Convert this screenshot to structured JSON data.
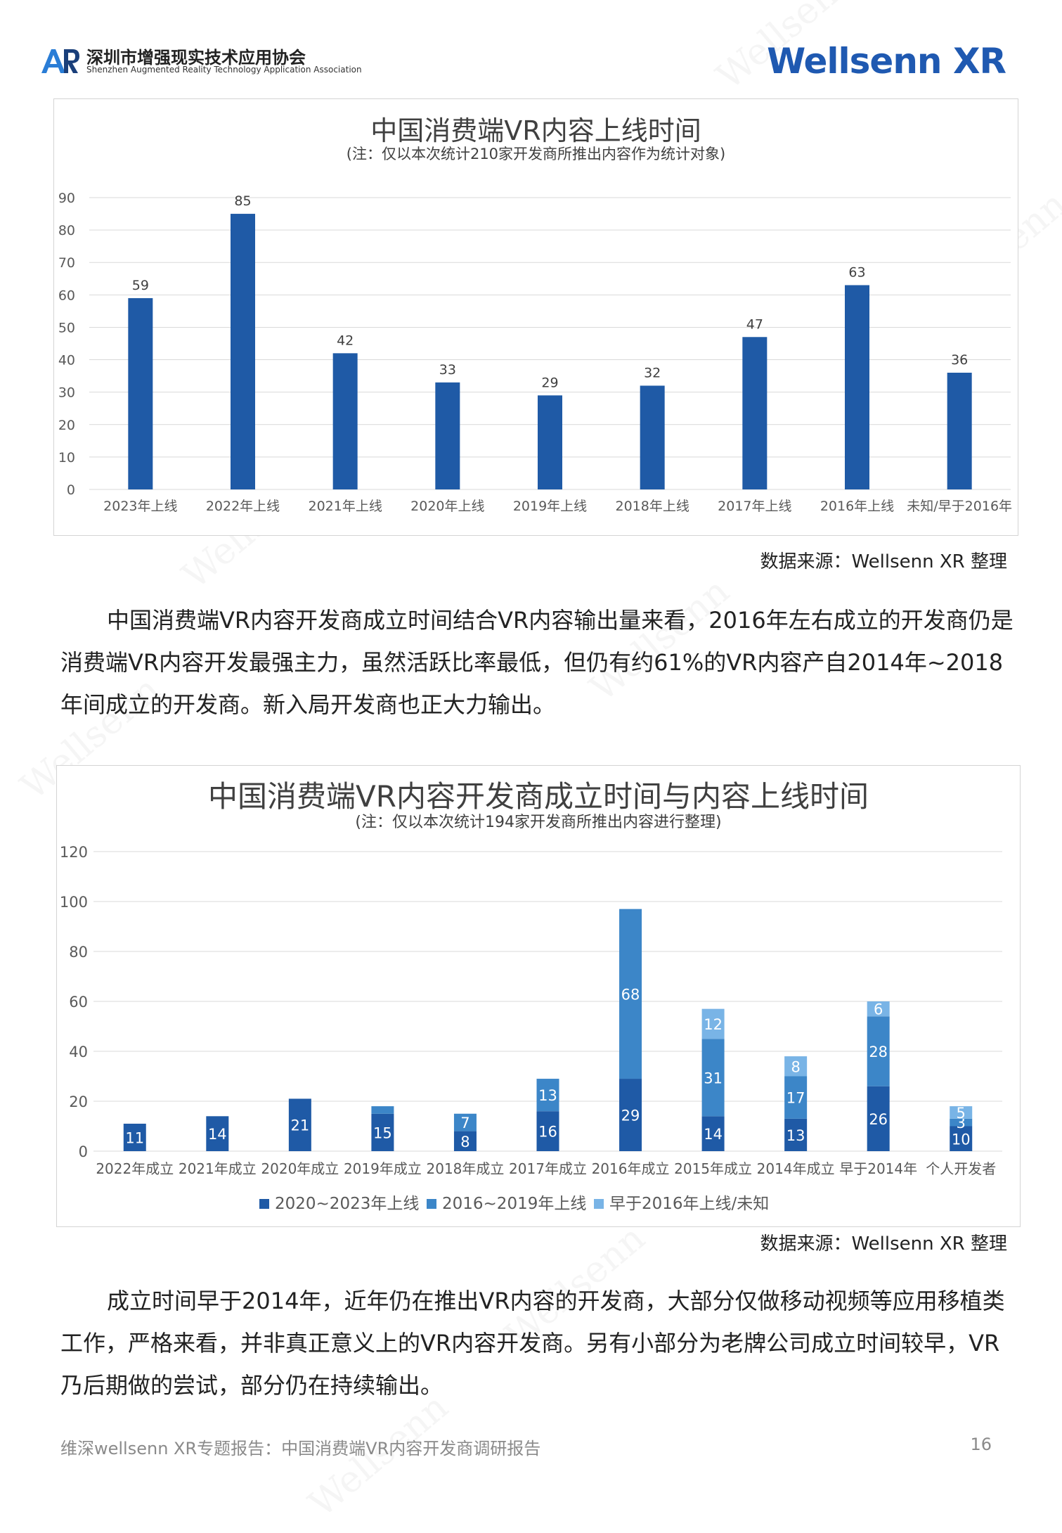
{
  "header": {
    "badge": "AR",
    "assoc_cn": "深圳市增强现实技术应用协会",
    "assoc_en": "Shenzhen Augmented Reality Technology Application Association",
    "brand": "Wellsenn XR"
  },
  "watermark_text": "Wellsenn",
  "charts": {
    "chart1": {
      "title": "中国消费端VR内容上线时间",
      "subtitle": "(注：仅以本次统计210家开发商所推出内容作为统计对象)",
      "source": "数据来源：Wellsenn XR 整理"
    },
    "chart2": {
      "title": "中国消费端VR内容开发商成立时间与内容上线时间",
      "subtitle": "(注：仅以本次统计194家开发商所推出内容进行整理)",
      "source": "数据来源：Wellsenn XR 整理"
    }
  },
  "chart_data": [
    {
      "type": "bar",
      "title": "中国消费端VR内容上线时间",
      "subtitle": "(注：仅以本次统计210家开发商所推出内容作为统计对象)",
      "categories": [
        "2023年上线",
        "2022年上线",
        "2021年上线",
        "2020年上线",
        "2019年上线",
        "2018年上线",
        "2017年上线",
        "2016年上线",
        "未知/早于2016年"
      ],
      "values": [
        59,
        85,
        42,
        33,
        29,
        32,
        47,
        63,
        36
      ],
      "ylim": [
        0,
        90
      ],
      "yticks": [
        0,
        10,
        20,
        30,
        40,
        50,
        60,
        70,
        80,
        90
      ],
      "grid": true,
      "color": "#1f5aa6"
    },
    {
      "type": "bar",
      "stacked": true,
      "title": "中国消费端VR内容开发商成立时间与内容上线时间",
      "subtitle": "(注：仅以本次统计194家开发商所推出内容进行整理)",
      "categories": [
        "2022年成立",
        "2021年成立",
        "2020年成立",
        "2019年成立",
        "2018年成立",
        "2017年成立",
        "2016年成立",
        "2015年成立",
        "2014年成立",
        "早于2014年",
        "个人开发者"
      ],
      "series": [
        {
          "name": "2020~2023年上线",
          "color": "#1f5aa6",
          "values": [
            11,
            14,
            21,
            15,
            8,
            16,
            29,
            14,
            13,
            26,
            10
          ]
        },
        {
          "name": "2016~2019年上线",
          "color": "#3c86c8",
          "values": [
            0,
            0,
            0,
            3,
            7,
            13,
            68,
            31,
            17,
            28,
            3
          ]
        },
        {
          "name": "早于2016年上线/未知",
          "color": "#79b4e6",
          "values": [
            0,
            0,
            0,
            0,
            0,
            0,
            0,
            12,
            8,
            6,
            5
          ]
        }
      ],
      "labels": [
        [
          "11",
          "",
          ""
        ],
        [
          "14",
          "",
          ""
        ],
        [
          "21",
          "",
          ""
        ],
        [
          "15",
          "",
          ""
        ],
        [
          "8",
          "7",
          ""
        ],
        [
          "16",
          "13",
          ""
        ],
        [
          "29",
          "68",
          ""
        ],
        [
          "14",
          "31",
          "12"
        ],
        [
          "13",
          "17",
          "8"
        ],
        [
          "26",
          "28",
          "6"
        ],
        [
          "10",
          "3",
          "5"
        ]
      ],
      "ylim": [
        0,
        120
      ],
      "yticks": [
        0,
        20,
        40,
        60,
        80,
        100,
        120
      ],
      "grid": true,
      "legend": "bottom"
    }
  ],
  "paragraphs": {
    "p1": "中国消费端VR内容开发商成立时间结合VR内容输出量来看，2016年左右成立的开发商仍是消费端VR内容开发最强主力，虽然活跃比率最低，但仍有约61%的VR内容产自2014年~2018年间成立的开发商。新入局开发商也正大力输出。",
    "p2": "成立时间早于2014年，近年仍在推出VR内容的开发商，大部分仅做移动视频等应用移植类工作，严格来看，并非真正意义上的VR内容开发商。另有小部分为老牌公司成立时间较早，VR乃后期做的尝试，部分仍在持续输出。"
  },
  "footer": {
    "left": "维深wellsenn XR专题报告：中国消费端VR内容开发商调研报告",
    "page": "16"
  }
}
